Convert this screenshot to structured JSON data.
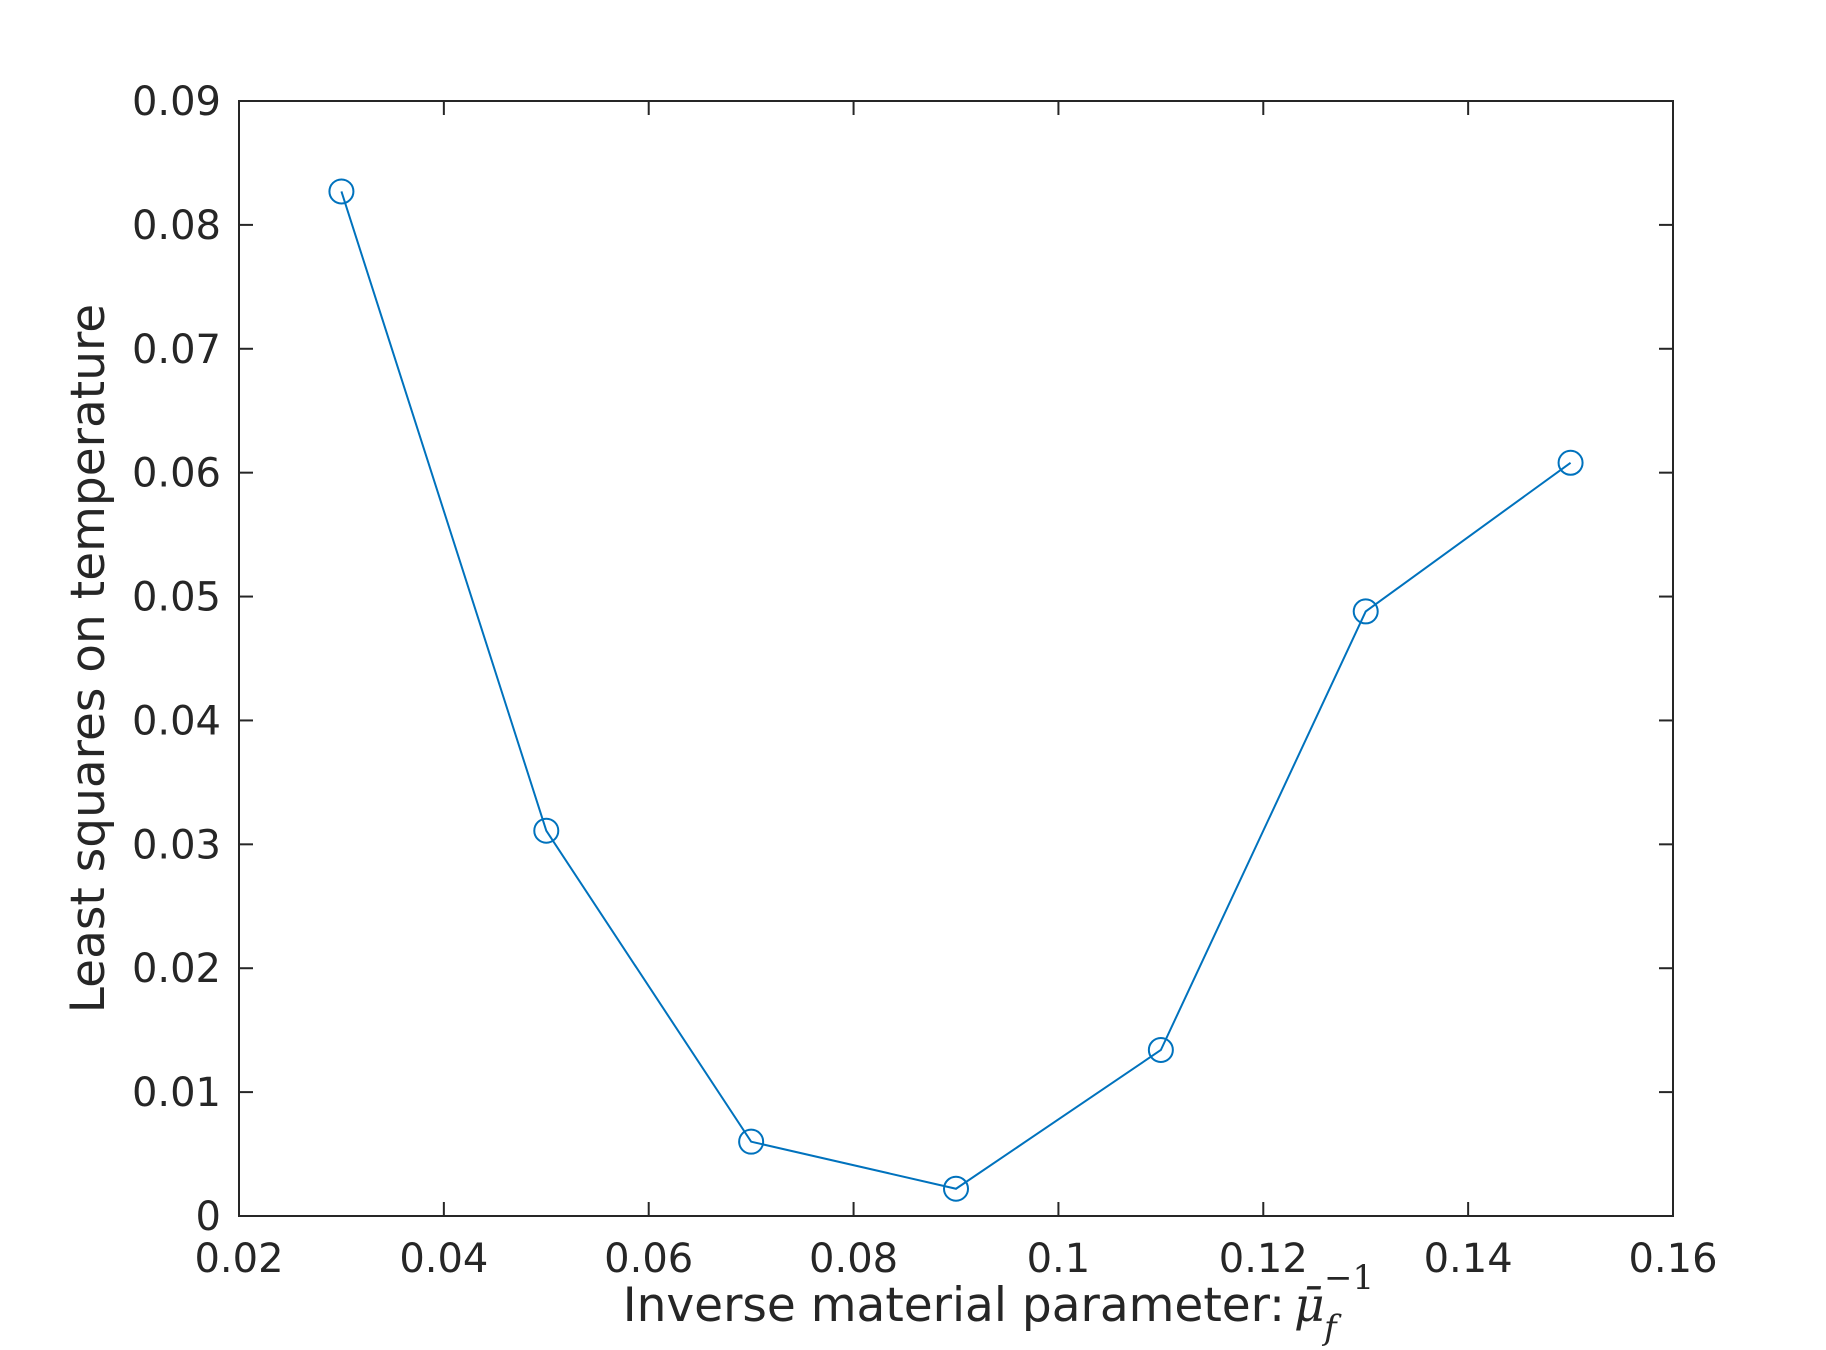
{
  "chart_data": {
    "type": "line",
    "xlabel": "Inverse material parameter:",
    "xlabel_math": {
      "base": "μ",
      "bar": "¯",
      "subscript": "f",
      "superscript": "−1"
    },
    "ylabel": "Least squares on temperature",
    "xlim": [
      0.02,
      0.16
    ],
    "ylim": [
      0,
      0.09
    ],
    "xticks": [
      "0.02",
      "0.04",
      "0.06",
      "0.08",
      "0.1",
      "0.12",
      "0.14",
      "0.16"
    ],
    "yticks": [
      "0",
      "0.01",
      "0.02",
      "0.03",
      "0.04",
      "0.05",
      "0.06",
      "0.07",
      "0.08",
      "0.09"
    ],
    "grid": false,
    "box": true,
    "series": [
      {
        "color": "#0072BD",
        "marker": "circle",
        "x": [
          0.03,
          0.05,
          0.07,
          0.09,
          0.11,
          0.13,
          0.15
        ],
        "y": [
          0.0827,
          0.0311,
          0.006,
          0.0022,
          0.0134,
          0.0488,
          0.0608
        ]
      }
    ]
  }
}
